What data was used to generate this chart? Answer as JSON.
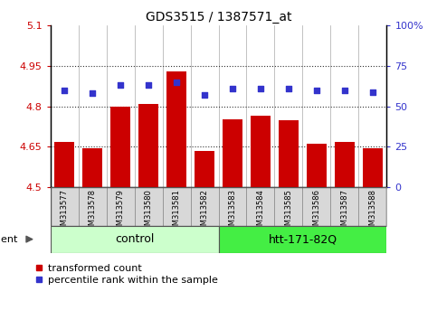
{
  "title": "GDS3515 / 1387571_at",
  "samples": [
    "GSM313577",
    "GSM313578",
    "GSM313579",
    "GSM313580",
    "GSM313581",
    "GSM313582",
    "GSM313583",
    "GSM313584",
    "GSM313585",
    "GSM313586",
    "GSM313587",
    "GSM313588"
  ],
  "red_values": [
    4.668,
    4.645,
    4.8,
    4.81,
    4.93,
    4.635,
    4.753,
    4.765,
    4.75,
    4.662,
    4.668,
    4.645
  ],
  "blue_values": [
    60,
    58,
    63,
    63,
    65,
    57,
    61,
    61,
    61,
    60,
    60,
    59
  ],
  "ylim_left": [
    4.5,
    5.1
  ],
  "ylim_right": [
    0,
    100
  ],
  "yticks_left": [
    4.5,
    4.65,
    4.8,
    4.95,
    5.1
  ],
  "yticks_right": [
    0,
    25,
    50,
    75,
    100
  ],
  "ytick_labels_left": [
    "4.5",
    "4.65",
    "4.8",
    "4.95",
    "5.1"
  ],
  "ytick_labels_right": [
    "0",
    "25",
    "50",
    "75",
    "100%"
  ],
  "hlines": [
    4.65,
    4.8,
    4.95
  ],
  "control_label": "control",
  "treatment_label": "htt-171-82Q",
  "agent_label": "agent",
  "bar_color": "#cc0000",
  "dot_color": "#3333cc",
  "bar_width": 0.7,
  "legend_red_label": "transformed count",
  "legend_blue_label": "percentile rank within the sample",
  "control_color": "#ccffcc",
  "treatment_color": "#44ee44",
  "label_area_bg": "#d8d8d8",
  "grid_linestyle": "dotted",
  "grid_color": "#333333"
}
